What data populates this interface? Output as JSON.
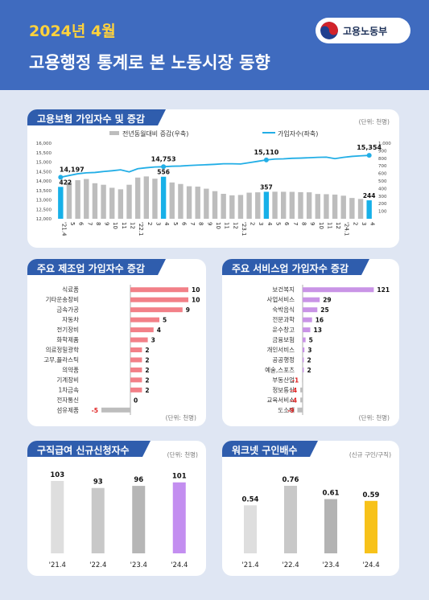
{
  "header": {
    "year_month": "2024년 4월",
    "title": "고용행정 통계로 본 노동시장 동향",
    "logo_text": "고용노동부"
  },
  "panels": {
    "insured": {
      "title": "고용보험 가입자수 및 증감",
      "unit": "(단위: 천명)"
    },
    "manufacturing": {
      "title": "주요 제조업 가입자수 증감",
      "unit": "(단위: 천명)"
    },
    "services": {
      "title": "주요 서비스업 가입자수 증감",
      "unit": "(단위: 천명)"
    },
    "jobseeking": {
      "title": "구직급여 신규신청자수",
      "unit": "(단위: 천명)"
    },
    "worknet": {
      "title": "워크넷 구인배수",
      "unit": "(신규 구인/구직)"
    }
  },
  "colors": {
    "header_bg": "#3f6bbf",
    "title_accent": "#ffd23c",
    "panel_title_bg": "#2f5dad",
    "bar_gray": "#bdbdbd",
    "highlight_blue": "#17b0e8",
    "line_blue": "#22aee6",
    "mfg_bar": "#f28088",
    "svc_bar": "#c994e6",
    "neg_bar": "#bdbdbd",
    "jobseek_latest": "#c38ef0",
    "worknet_latest": "#f7c21a"
  },
  "chart_data": [
    {
      "type": "bar",
      "title": "고용보험 가입자수 및 증감",
      "legend": [
        "전년동월대비 증감(우축)",
        "가입자수(좌축)"
      ],
      "legend_position": "top",
      "categories": [
        "'21.4",
        "5",
        "6",
        "7",
        "8",
        "9",
        "10",
        "11",
        "12",
        "'22.1",
        "2",
        "3",
        "4",
        "5",
        "6",
        "7",
        "8",
        "9",
        "10",
        "11",
        "12",
        "'23.1",
        "2",
        "3",
        "4",
        "5",
        "6",
        "7",
        "8",
        "9",
        "10",
        "11",
        "12",
        "'24.1",
        "2",
        "3",
        "4"
      ],
      "highlight_indices": [
        0,
        12,
        24,
        36
      ],
      "series": [
        {
          "name": "전년동월대비 증감(우축)",
          "axis": "right",
          "type": "bar",
          "values": [
            422,
            486,
            510,
            526,
            470,
            450,
            410,
            390,
            450,
            545,
            560,
            530,
            556,
            480,
            460,
            430,
            425,
            398,
            365,
            330,
            310,
            315,
            345,
            350,
            357,
            358,
            357,
            356,
            352,
            350,
            328,
            325,
            320,
            305,
            275,
            262,
            244
          ]
        },
        {
          "name": "가입자수(좌축)",
          "axis": "left",
          "type": "line",
          "values": [
            14197,
            14290,
            14380,
            14430,
            14450,
            14500,
            14540,
            14590,
            14480,
            14650,
            14700,
            14740,
            14753,
            14780,
            14790,
            14820,
            14840,
            14860,
            14880,
            14910,
            14910,
            14900,
            14970,
            15040,
            15110,
            15160,
            15170,
            15200,
            15210,
            15230,
            15250,
            15260,
            15180,
            15250,
            15300,
            15330,
            15354
          ]
        }
      ],
      "point_labels": [
        {
          "index": 0,
          "line": "14,197",
          "bar": "422"
        },
        {
          "index": 12,
          "line": "14,753",
          "bar": "556"
        },
        {
          "index": 24,
          "line": "15,110",
          "bar": "357"
        },
        {
          "index": 36,
          "line": "15,354",
          "bar": "244"
        }
      ],
      "y_left": {
        "ylim": [
          12000,
          16000
        ],
        "ticks": [
          "12,000",
          "12,500",
          "13,000",
          "13,500",
          "14,000",
          "14,500",
          "15,000",
          "15,500",
          "16,000"
        ]
      },
      "y_right": {
        "ylim": [
          0,
          1000
        ],
        "ticks": [
          "100",
          "200",
          "300",
          "400",
          "500",
          "600",
          "700",
          "800",
          "900",
          "1,000"
        ]
      }
    },
    {
      "type": "bar",
      "orientation": "horizontal",
      "title": "주요 제조업 가입자수 증감",
      "categories": [
        "식료품",
        "기타운송장비",
        "금속가공",
        "자동차",
        "전기장비",
        "화학제품",
        "의료정밀광학",
        "고무,플라스틱",
        "의약품",
        "기계장비",
        "1차금속",
        "전자통신",
        "섬유제품"
      ],
      "values": [
        10,
        10,
        9,
        5,
        4,
        3,
        2,
        2,
        2,
        2,
        2,
        0,
        -5
      ],
      "labels": [
        "10",
        "10",
        "9",
        "5",
        "4",
        "3",
        "2",
        "2",
        "2",
        "2",
        "2",
        "0",
        "-5"
      ]
    },
    {
      "type": "bar",
      "orientation": "horizontal",
      "title": "주요 서비스업 가입자수 증감",
      "categories": [
        "보건복지",
        "사업서비스",
        "숙박음식",
        "전문과학",
        "운수창고",
        "금융보험",
        "개인서비스",
        "공공행정",
        "예술,스포츠",
        "부동산업",
        "정보통신",
        "교육서비스",
        "도소매"
      ],
      "values": [
        121,
        29,
        25,
        16,
        13,
        5,
        3,
        2,
        2,
        -1,
        -4,
        -4,
        -9
      ],
      "labels": [
        "121",
        "29",
        "25",
        "16",
        "13",
        "5",
        "3",
        "2",
        "2",
        "-1",
        "-4",
        "-4",
        "-9"
      ]
    },
    {
      "type": "bar",
      "title": "구직급여 신규신청자수",
      "categories": [
        "'21.4",
        "'22.4",
        "'23.4",
        "'24.4"
      ],
      "values": [
        103,
        93,
        96,
        101
      ],
      "labels": [
        "103",
        "93",
        "96",
        "101"
      ]
    },
    {
      "type": "bar",
      "title": "워크넷 구인배수",
      "categories": [
        "'21.4",
        "'22.4",
        "'23.4",
        "'24.4"
      ],
      "values": [
        0.54,
        0.76,
        0.61,
        0.59
      ],
      "labels": [
        "0.54",
        "0.76",
        "0.61",
        "0.59"
      ]
    }
  ]
}
